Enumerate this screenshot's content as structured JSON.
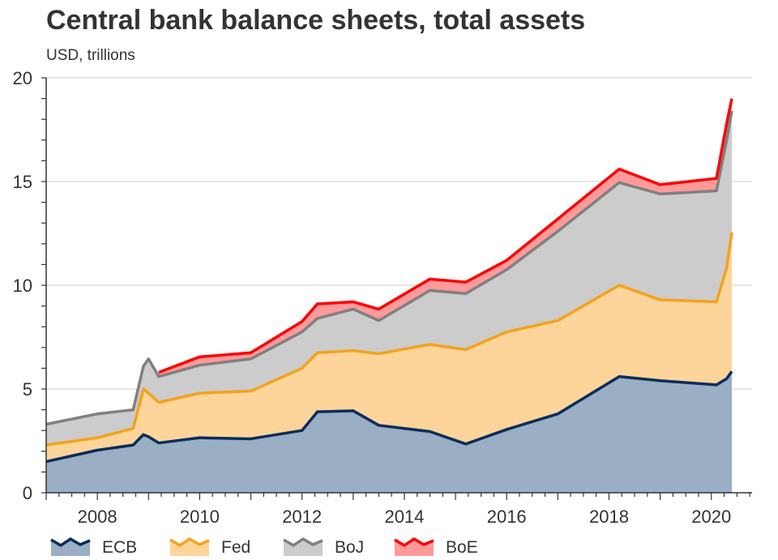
{
  "chart_data": {
    "type": "area",
    "stacked": true,
    "title": "Central bank balance sheets, total assets",
    "subtitle": "USD, trillions",
    "xlabel": "",
    "ylabel": "USD, trillions",
    "xlim": [
      2007.0,
      2020.4
    ],
    "ylim": [
      0,
      20
    ],
    "yticks": [
      "0",
      "5",
      "10",
      "15",
      "20"
    ],
    "ytick_values": [
      0,
      5,
      10,
      15,
      20
    ],
    "xticks": [
      "2008",
      "2010",
      "2012",
      "2014",
      "2016",
      "2018",
      "2020"
    ],
    "xtick_values": [
      2008,
      2010,
      2012,
      2014,
      2016,
      2018,
      2020
    ],
    "grid": "horizontal",
    "legend_position": "bottom",
    "x": [
      2007.0,
      2008.0,
      2008.7,
      2008.9,
      2009.0,
      2009.2,
      2010,
      2011,
      2012,
      2012.3,
      2013,
      2013.5,
      2014.5,
      2015.2,
      2016,
      2017,
      2018.2,
      2019,
      2020.1,
      2020.3,
      2020.4
    ],
    "series": [
      {
        "name": "ECB",
        "line_color": "#0b2d5c",
        "fill_color": "#9aaec4",
        "values": [
          1.5,
          2.05,
          2.3,
          2.8,
          2.7,
          2.4,
          2.65,
          2.6,
          3.0,
          3.9,
          3.95,
          3.25,
          2.95,
          2.35,
          3.05,
          3.8,
          5.6,
          5.4,
          5.2,
          5.5,
          5.85
        ]
      },
      {
        "name": "Fed",
        "line_color": "#f5a21a",
        "fill_color": "#fdd59a",
        "values": [
          0.8,
          0.6,
          0.8,
          2.2,
          2.1,
          1.95,
          2.15,
          2.3,
          3.0,
          2.85,
          2.9,
          3.45,
          4.2,
          4.55,
          4.7,
          4.5,
          4.4,
          3.9,
          4.0,
          5.35,
          6.7
        ]
      },
      {
        "name": "BoJ",
        "line_color": "#808080",
        "fill_color": "#cccccc",
        "values": [
          1.0,
          1.15,
          0.9,
          1.1,
          1.65,
          1.25,
          1.35,
          1.55,
          1.75,
          1.65,
          2.0,
          1.6,
          2.6,
          2.7,
          3.0,
          4.3,
          4.95,
          5.1,
          5.35,
          6.15,
          5.85
        ]
      },
      {
        "name": "BoE",
        "line_color": "#ff0000",
        "fill_color": "#ff9a9a",
        "values": [
          null,
          null,
          null,
          null,
          null,
          0.2,
          0.4,
          0.3,
          0.5,
          0.7,
          0.35,
          0.55,
          0.55,
          0.55,
          0.45,
          0.6,
          0.65,
          0.45,
          0.6,
          0.8,
          0.6
        ]
      }
    ]
  }
}
